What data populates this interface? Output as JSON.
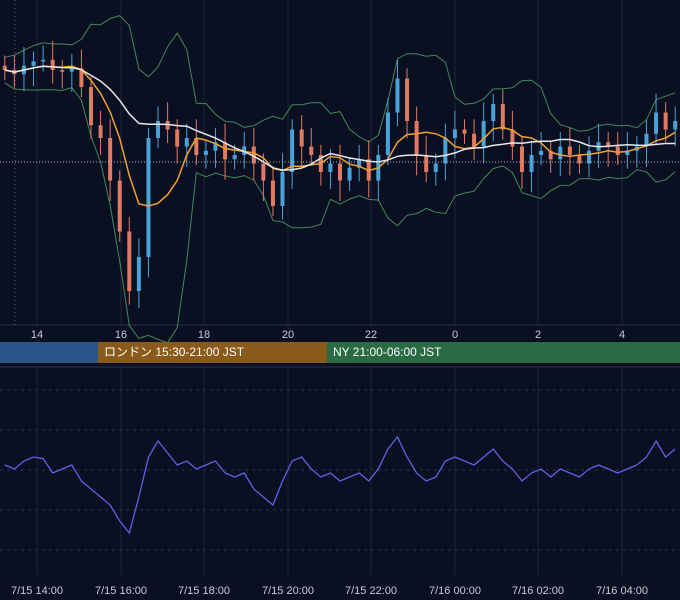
{
  "chart_data": [
    {
      "type": "line",
      "title": "",
      "description_series": [
        "price candles",
        "bollinger bands",
        "moving averages"
      ],
      "x_ticks": [
        "14",
        "16",
        "18",
        "20",
        "22",
        "0",
        "2",
        "4"
      ],
      "series": [],
      "price_close": [
        1.0,
        0.95,
        1.05,
        1.1,
        1.12,
        1.0,
        0.98,
        1.02,
        0.8,
        0.35,
        0.2,
        -0.3,
        -0.9,
        -1.6,
        -1.2,
        0.2,
        0.4,
        0.3,
        0.1,
        0.2,
        0.0,
        0.05,
        0.15,
        -0.05,
        0.0,
        0.1,
        -0.1,
        -0.3,
        -0.6,
        -0.2,
        0.3,
        0.1,
        0.0,
        -0.2,
        -0.1,
        -0.3,
        -0.15,
        -0.05,
        -0.3,
        0.0,
        0.5,
        0.9,
        0.4,
        0.0,
        -0.2,
        -0.1,
        0.2,
        0.3,
        0.25,
        0.1,
        0.4,
        0.6,
        0.3,
        0.1,
        -0.2,
        0.0,
        0.05,
        -0.05,
        0.1,
        0.0,
        -0.1,
        0.05,
        0.15,
        0.1,
        0.0,
        0.05,
        0.1,
        0.25,
        0.5,
        0.3,
        0.4
      ],
      "grid": true
    },
    {
      "type": "line",
      "title": "",
      "x_ticks": [
        "7/15 14:00",
        "7/15 16:00",
        "7/15 18:00",
        "7/15 20:00",
        "7/15 22:00",
        "7/16 00:00",
        "7/16 02:00",
        "7/16 04:00"
      ],
      "values": [
        0.5,
        0.45,
        0.55,
        0.6,
        0.58,
        0.4,
        0.45,
        0.5,
        0.3,
        0.2,
        0.1,
        0.0,
        -0.2,
        -0.35,
        0.1,
        0.6,
        0.8,
        0.65,
        0.5,
        0.55,
        0.45,
        0.5,
        0.55,
        0.4,
        0.35,
        0.4,
        0.2,
        0.1,
        0.0,
        0.3,
        0.55,
        0.6,
        0.45,
        0.35,
        0.4,
        0.3,
        0.35,
        0.4,
        0.3,
        0.45,
        0.7,
        0.85,
        0.6,
        0.4,
        0.3,
        0.35,
        0.55,
        0.6,
        0.55,
        0.5,
        0.6,
        0.7,
        0.55,
        0.45,
        0.3,
        0.4,
        0.45,
        0.35,
        0.45,
        0.4,
        0.35,
        0.45,
        0.5,
        0.45,
        0.4,
        0.45,
        0.5,
        0.6,
        0.8,
        0.6,
        0.7
      ],
      "grid": true
    }
  ],
  "sessions": [
    {
      "label": "",
      "color": "#2c5589"
    },
    {
      "label": "ロンドン 15:30-21:00 JST",
      "color": "#8a5a1a"
    },
    {
      "label": "NY 21:00-06:00 JST",
      "color": "#2a6b45"
    }
  ],
  "colors": {
    "background": "#0b0f22",
    "up_candle": "#4aa3d8",
    "down_candle": "#e07a62",
    "band": "#3f8a55",
    "ma_orange": "#f0a030",
    "ma_white": "#e8e8e8",
    "oscillator": "#5a63e8",
    "grid": "#1e2436",
    "axis_text": "#c8cbd6"
  }
}
